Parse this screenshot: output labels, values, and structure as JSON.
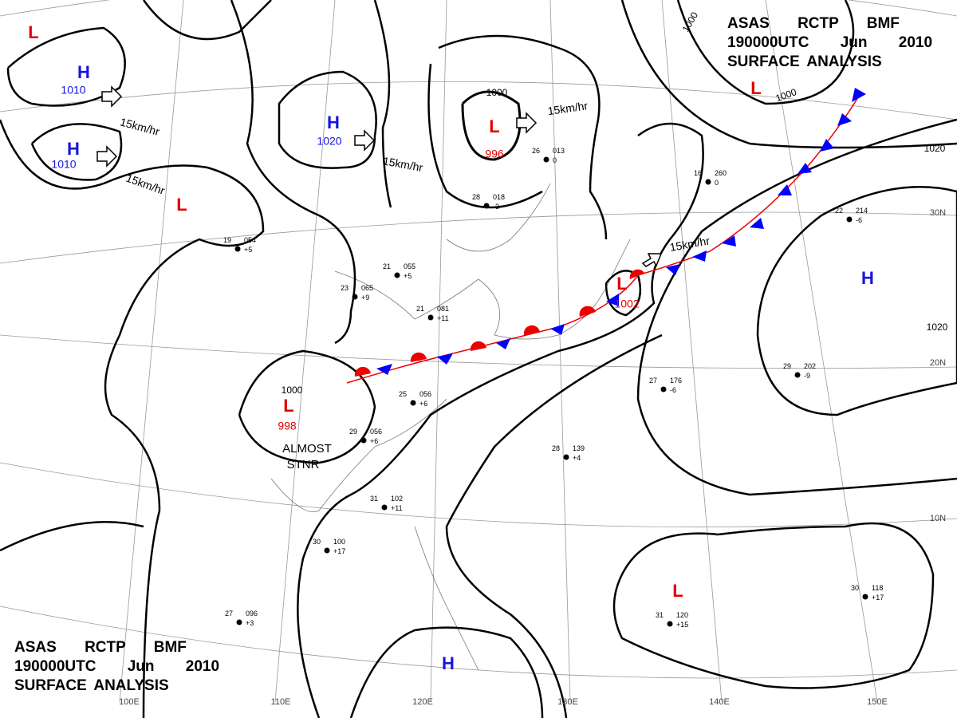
{
  "header_top_right": {
    "lines": [
      "ASAS RCTP BMF",
      "190000UTC Jun 2010",
      "SURFACE ANALYSIS"
    ]
  },
  "header_bottom_left": {
    "lines": [
      "ASAS RCTP BMF",
      "190000UTC Jun 2010",
      "SURFACE ANALYSIS"
    ]
  },
  "pressure_systems": [
    {
      "label": "L"
    },
    {
      "label": "H",
      "value": "1010"
    },
    {
      "label": "H",
      "value": "1010"
    },
    {
      "label": "L"
    },
    {
      "label": "H",
      "value": "1020"
    },
    {
      "label": "L",
      "value": "996"
    },
    {
      "label": "L"
    },
    {
      "label": "L",
      "value": "1002"
    },
    {
      "label": "H"
    },
    {
      "label": "L",
      "value": "998"
    },
    {
      "label": "L"
    },
    {
      "label": "H"
    }
  ],
  "isobar_labels": [
    "1000",
    "1000",
    "1000",
    "1000",
    "1020",
    "1020"
  ],
  "motion_labels": [
    "15km/hr",
    "15km/hr",
    "15km/hr",
    "15km/hr",
    "15km/hr"
  ],
  "annotations": [
    "ALMOST",
    "STNR"
  ],
  "grid_labels": {
    "lon": [
      "100E",
      "110E",
      "120E",
      "130E",
      "140E",
      "150E"
    ],
    "lat": [
      "30N",
      "20N",
      "10N"
    ]
  },
  "stations": [
    {
      "t": "21",
      "p": "055",
      "d": "+5"
    },
    {
      "t": "21",
      "p": "081",
      "d": "+11"
    },
    {
      "t": "19",
      "p": "054",
      "d": "+5"
    },
    {
      "t": "23",
      "p": "065",
      "d": "+9"
    },
    {
      "t": "25",
      "p": "056",
      "d": "+6"
    },
    {
      "t": "29",
      "p": "056",
      "d": "+6"
    },
    {
      "t": "28",
      "p": "018",
      "d": "-3"
    },
    {
      "t": "26",
      "p": "013",
      "d": "0"
    },
    {
      "t": "27",
      "p": "176",
      "d": "-6"
    },
    {
      "t": "29",
      "p": "202",
      "d": "-9"
    },
    {
      "t": "28",
      "p": "139",
      "d": "+4"
    },
    {
      "t": "31",
      "p": "102",
      "d": "+11"
    },
    {
      "t": "30",
      "p": "100",
      "d": "+17"
    },
    {
      "t": "27",
      "p": "096",
      "d": "+3"
    },
    {
      "t": "30",
      "p": "118",
      "d": "+17"
    },
    {
      "t": "31",
      "p": "120",
      "d": "+15"
    },
    {
      "t": "22",
      "p": "214",
      "d": "-6"
    },
    {
      "t": "16",
      "p": "260",
      "d": "0"
    }
  ]
}
